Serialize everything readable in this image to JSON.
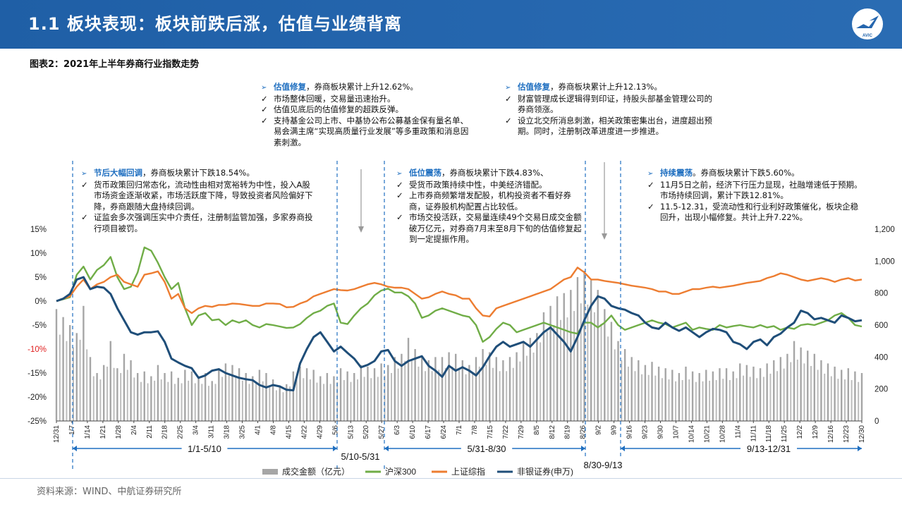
{
  "header": {
    "title": "1.1 板块表现：板块前跌后涨，估值与业绩背离",
    "logo_text": "AVIC"
  },
  "figure": {
    "caption": "图表2：2021年上半年券商行业指数走势"
  },
  "source": "资料来源：WIND、中航证券研究所",
  "colors": {
    "header": "#2566ae",
    "volume": "#a6a6a6",
    "hs300": "#70ad47",
    "sh": "#ed7d31",
    "nonbank": "#1f4e79",
    "accent": "#1f6fc0"
  },
  "annotations": [
    {
      "heading": "估值修复",
      "heading_rest": "，券商板块累计上升12.62%。",
      "items": [
        "市场整体回暖，交易量迅速抬升。",
        "估值见底后的估值修复的超跌反弹。",
        "支持基金公司上市、中基协公布公募基金保有量名单、易会满主席“实现高质量行业发展”等多重政策和消息因素刺激。"
      ]
    },
    {
      "heading": "估值修复",
      "heading_rest": "，券商板块累计上升12.13%。",
      "items": [
        "财富管理成长逻辑得到印证，持股头部基金管理公司的券商领涨。",
        "设立北交所消息刺激，相关政策密集出台，进度超出预期。同时，注册制改革进度进一步推进。"
      ]
    },
    {
      "heading": "节后大幅回调",
      "heading_rest": "，券商板块累计下跌18.54%。",
      "items": [
        "货币政策回归常态化，流动性由相对宽裕转为中性，投入A股市场资金逐渐收紧，市场活跃度下降，导致投资者风险偏好下降，券商跟随大盘持续回调。",
        "证监会多次强调压实中介责任，注册制监管加强，多家券商投行项目被罚。"
      ]
    },
    {
      "heading": "低位震荡",
      "heading_rest": "，券商板块累计下跌4.83%、",
      "items": [
        "受货币政策持续中性，中美经济错配。",
        "上市券商频繁增发配股，机构投资者不看好券商，证券股机构配置占比较低。",
        "市场交投活跃，交易量连续49个交易日成交金额破万亿元，对券商7月末至8月下旬的估值修复起到一定提振作用。"
      ]
    },
    {
      "heading": "持续震荡",
      "heading_rest": "。券商板块累计下跌5.60%。",
      "items": [
        "11月5日之前，经济下行压力显现，社融增速低于预期。市场持续回调，累计下跌12.81%。",
        "11.5-12.31，受流动性和行业利好政策催化，板块企稳回升，出现小幅修复。共计上升7.22%。"
      ]
    }
  ],
  "chart_data": {
    "type": "line",
    "left_axis": {
      "ticks": [
        "15%",
        "10%",
        "5%",
        "0%",
        "-5%",
        "-10%",
        "-15%",
        "-20%",
        "-25%"
      ],
      "range": [
        -0.25,
        0.15
      ]
    },
    "right_axis": {
      "ticks": [
        "1,200",
        "1,000",
        "800",
        "600",
        "400",
        "200",
        "0"
      ],
      "range": [
        0,
        1200
      ]
    },
    "x_ticks": [
      "12/31",
      "1/7",
      "1/14",
      "1/21",
      "1/28",
      "2/4",
      "2/11",
      "2/18",
      "2/25",
      "3/4",
      "3/11",
      "3/18",
      "3/25",
      "4/1",
      "4/8",
      "4/15",
      "4/22",
      "4/29",
      "5/6",
      "5/13",
      "5/20",
      "5/27",
      "6/3",
      "6/10",
      "6/17",
      "6/24",
      "7/1",
      "7/8",
      "7/15",
      "7/22",
      "7/29",
      "8/5",
      "8/12",
      "8/19",
      "8/26",
      "9/2",
      "9/9",
      "9/16",
      "9/23",
      "9/30",
      "10/7",
      "10/14",
      "10/21",
      "10/28",
      "11/4",
      "11/11",
      "11/18",
      "11/25",
      "12/2",
      "12/9",
      "12/16",
      "12/23",
      "12/30"
    ],
    "periods": [
      "1/1-5/10",
      "5/10-5/31",
      "5/31-8/30",
      "8/30-9/13",
      "9/13-12/31"
    ],
    "legend": [
      "成交金额（亿元）",
      "沪深300",
      "上证综指",
      "非银证券(申万)"
    ],
    "series": [
      {
        "name": "沪深300",
        "values": [
          0,
          0.4,
          0.8,
          5.5,
          7.2,
          4.5,
          6.5,
          7.5,
          9.2,
          5,
          2.5,
          3,
          6,
          11.2,
          10.5,
          8,
          5,
          2.5,
          3.8,
          -1.5,
          -5,
          -3,
          -2.5,
          -4,
          -3.8,
          -5,
          -4,
          -4.5,
          -4,
          -5,
          -5.5,
          -4.8,
          -5,
          -5.3,
          -5.6,
          -5.5,
          -4.8,
          -3.5,
          -2.5,
          -2,
          -1,
          -0.5,
          -4.5,
          -4.8,
          -3,
          -1.5,
          -0.5,
          1.2,
          2.2,
          2.6,
          1.8,
          1.8,
          1,
          -0.5,
          -3.5,
          -3,
          -2,
          -1.5,
          -2,
          -2.5,
          -3,
          -3.3,
          -5,
          -8.5,
          -7.5,
          -5.8,
          -4.5,
          -5,
          -6.5,
          -6,
          -5.5,
          -5,
          -4.5,
          -5,
          -5.5,
          -6,
          -6.5,
          -6.8,
          -4.5,
          -4.5,
          -5.5,
          -4.5,
          -3,
          -5,
          -6,
          -5.5,
          -5,
          -4.5,
          -4,
          -4.5,
          -4.8,
          -5.5,
          -5,
          -4.5,
          -6,
          -5.5,
          -5.8,
          -6,
          -5,
          -5.5,
          -5.2,
          -5,
          -5.3,
          -5.5,
          -5,
          -5.5,
          -5.2,
          -6,
          -5.5,
          -5.8,
          -5,
          -4.8,
          -5,
          -4.5,
          -4,
          -3,
          -2.5,
          -3.5,
          -5,
          -5.3
        ]
      },
      {
        "name": "上证综指",
        "values": [
          0,
          0.5,
          1,
          3,
          4.5,
          2.5,
          3.5,
          4,
          5,
          5.5,
          4,
          3.5,
          3,
          5.5,
          5.8,
          6.2,
          4,
          0.5,
          1.5,
          -1.5,
          -2.5,
          -1.5,
          -1,
          -1.2,
          -0.8,
          -0.8,
          -0.5,
          -0.6,
          -0.8,
          -1,
          -1,
          -0.5,
          -0.5,
          -0.6,
          -1.3,
          -1.2,
          -0.5,
          0,
          1,
          1.5,
          2,
          2.5,
          2.3,
          2.2,
          2.5,
          3,
          3.5,
          3.8,
          3.5,
          3,
          2.8,
          2.8,
          2.5,
          1.5,
          0.5,
          0.8,
          1.5,
          2,
          1.5,
          1.2,
          0.5,
          0.5,
          -1.5,
          -3,
          -3.2,
          -1.5,
          -1,
          -0.5,
          0,
          0.5,
          1,
          1.5,
          2,
          2.5,
          3.5,
          4.5,
          5,
          7,
          6,
          4.5,
          4.5,
          4.2,
          4,
          3.8,
          3.5,
          3.2,
          3,
          2.8,
          2.5,
          2,
          2,
          1.5,
          1.5,
          2,
          2.5,
          2.5,
          2.8,
          3,
          2.8,
          3,
          3.2,
          3.5,
          3.8,
          4,
          4.2,
          4.8,
          5.2,
          5.8,
          5.5,
          5,
          4.5,
          4.2,
          4.5,
          4.8,
          4.5,
          4,
          4.5,
          4.8,
          4.3,
          4.5
        ]
      },
      {
        "name": "非银证券(申万)",
        "values": [
          0,
          0.5,
          1.5,
          4.5,
          5,
          2.5,
          3,
          2.8,
          1.5,
          -1.5,
          -4,
          -6.5,
          -7,
          -6.5,
          -6.5,
          -6.3,
          -8.5,
          -12,
          -12.8,
          -13.5,
          -14,
          -16,
          -15.5,
          -14.5,
          -14.2,
          -15,
          -15.5,
          -16,
          -16.3,
          -16.5,
          -17.5,
          -18,
          -17.5,
          -17.8,
          -18.5,
          -18.6,
          -13,
          -10,
          -7.5,
          -6.5,
          -8.5,
          -10.5,
          -9.5,
          -10.8,
          -12,
          -13.8,
          -13.3,
          -12.5,
          -10.5,
          -10.2,
          -12.5,
          -13.5,
          -12.5,
          -12,
          -11.5,
          -13.5,
          -14.5,
          -15.8,
          -13.5,
          -14.5,
          -13.8,
          -14.5,
          -15.5,
          -13.8,
          -11.5,
          -9.5,
          -8.5,
          -9.5,
          -9,
          -8.5,
          -9.5,
          -8,
          -6.5,
          -5.5,
          -7,
          -8.5,
          -10.5,
          -7.5,
          -4,
          -1,
          1,
          0.5,
          -1,
          -1.5,
          -1.8,
          -2.5,
          -3,
          -4.5,
          -5.5,
          -5.8,
          -4.5,
          -5.5,
          -6.2,
          -5.5,
          -6.5,
          -7.5,
          -6.5,
          -5.8,
          -6,
          -6.5,
          -8.5,
          -9,
          -10,
          -8.5,
          -8,
          -9.2,
          -7.5,
          -6.8,
          -5.5,
          -4.5,
          -2,
          -2.5,
          -3.8,
          -3.5,
          -4,
          -4.5,
          -3,
          -3.5,
          -4.2,
          -4
        ]
      },
      {
        "name": "成交金额（亿元）",
        "values": [
          700,
          650,
          600,
          550,
          720,
          400,
          300,
          350,
          500,
          330,
          420,
          380,
          300,
          310,
          280,
          350,
          300,
          310,
          270,
          320,
          310,
          280,
          300,
          250,
          330,
          360,
          350,
          330,
          300,
          280,
          320,
          300,
          260,
          220,
          230,
          310,
          340,
          330,
          320,
          280,
          300,
          280,
          330,
          310,
          300,
          350,
          340,
          330,
          360,
          350,
          400,
          420,
          520,
          450,
          400,
          380,
          400,
          400,
          430,
          420,
          380,
          350,
          400,
          450,
          430,
          400,
          380,
          400,
          430,
          500,
          520,
          550,
          680,
          720,
          780,
          800,
          820,
          900,
          940,
          880,
          820,
          700,
          620,
          500,
          450,
          400,
          380,
          350,
          370,
          340,
          330,
          320,
          300,
          340,
          310,
          300,
          320,
          310,
          330,
          330,
          310,
          360,
          350,
          340,
          330,
          360,
          380,
          400,
          420,
          500,
          460,
          440,
          420,
          380,
          360,
          340,
          320,
          330,
          310,
          300
        ]
      }
    ],
    "title": "",
    "xlabel": "",
    "ylabel": ""
  }
}
